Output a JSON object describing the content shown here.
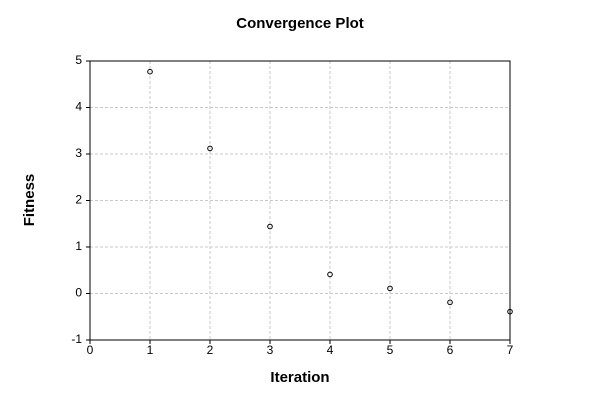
{
  "chart_data": {
    "type": "scatter",
    "title": "Convergence Plot",
    "x_label": "Iteration",
    "y_label": "Fitness",
    "x": [
      1,
      2,
      3,
      4,
      5,
      6,
      7
    ],
    "values": [
      4.77,
      3.12,
      1.44,
      0.41,
      0.11,
      -0.19,
      -0.39
    ],
    "color": "#000000",
    "xlim": [
      0,
      7
    ],
    "xticks": [
      0,
      1,
      2,
      3,
      4,
      5,
      6,
      7
    ],
    "ylim": [
      -1,
      5
    ],
    "yticks": [
      -1,
      0,
      1,
      2,
      3,
      4,
      5
    ],
    "grid": true
  }
}
